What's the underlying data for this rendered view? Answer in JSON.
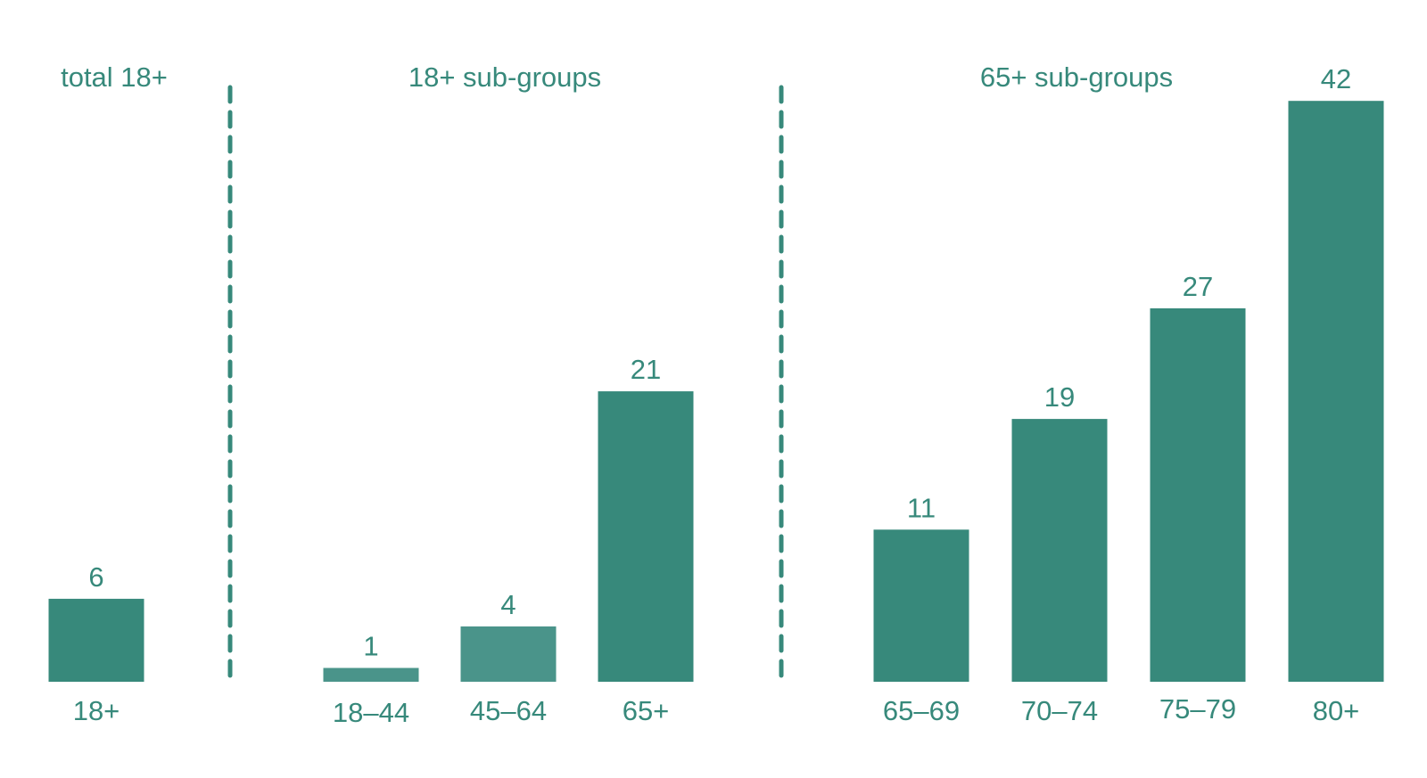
{
  "chart_data": {
    "type": "bar",
    "groups": [
      {
        "title": "total 18+",
        "categories": [
          "18+"
        ],
        "values": [
          6
        ]
      },
      {
        "title": "18+ sub-groups",
        "categories": [
          "18–44",
          "45–64",
          "65+"
        ],
        "values": [
          1,
          4,
          21
        ]
      },
      {
        "title": "65+ sub-groups",
        "categories": [
          "65–69",
          "70–74",
          "75–79",
          "80+"
        ],
        "values": [
          11,
          19,
          27,
          42
        ]
      }
    ],
    "value_labels": [
      "6",
      "1",
      "4",
      "21",
      "11",
      "19",
      "27",
      "42"
    ],
    "ylim": [
      0,
      42
    ],
    "grid": false,
    "legend": "none",
    "colors": {
      "bar": "#37897b",
      "bar_light": "#4a948a",
      "text": "#37897b"
    }
  }
}
